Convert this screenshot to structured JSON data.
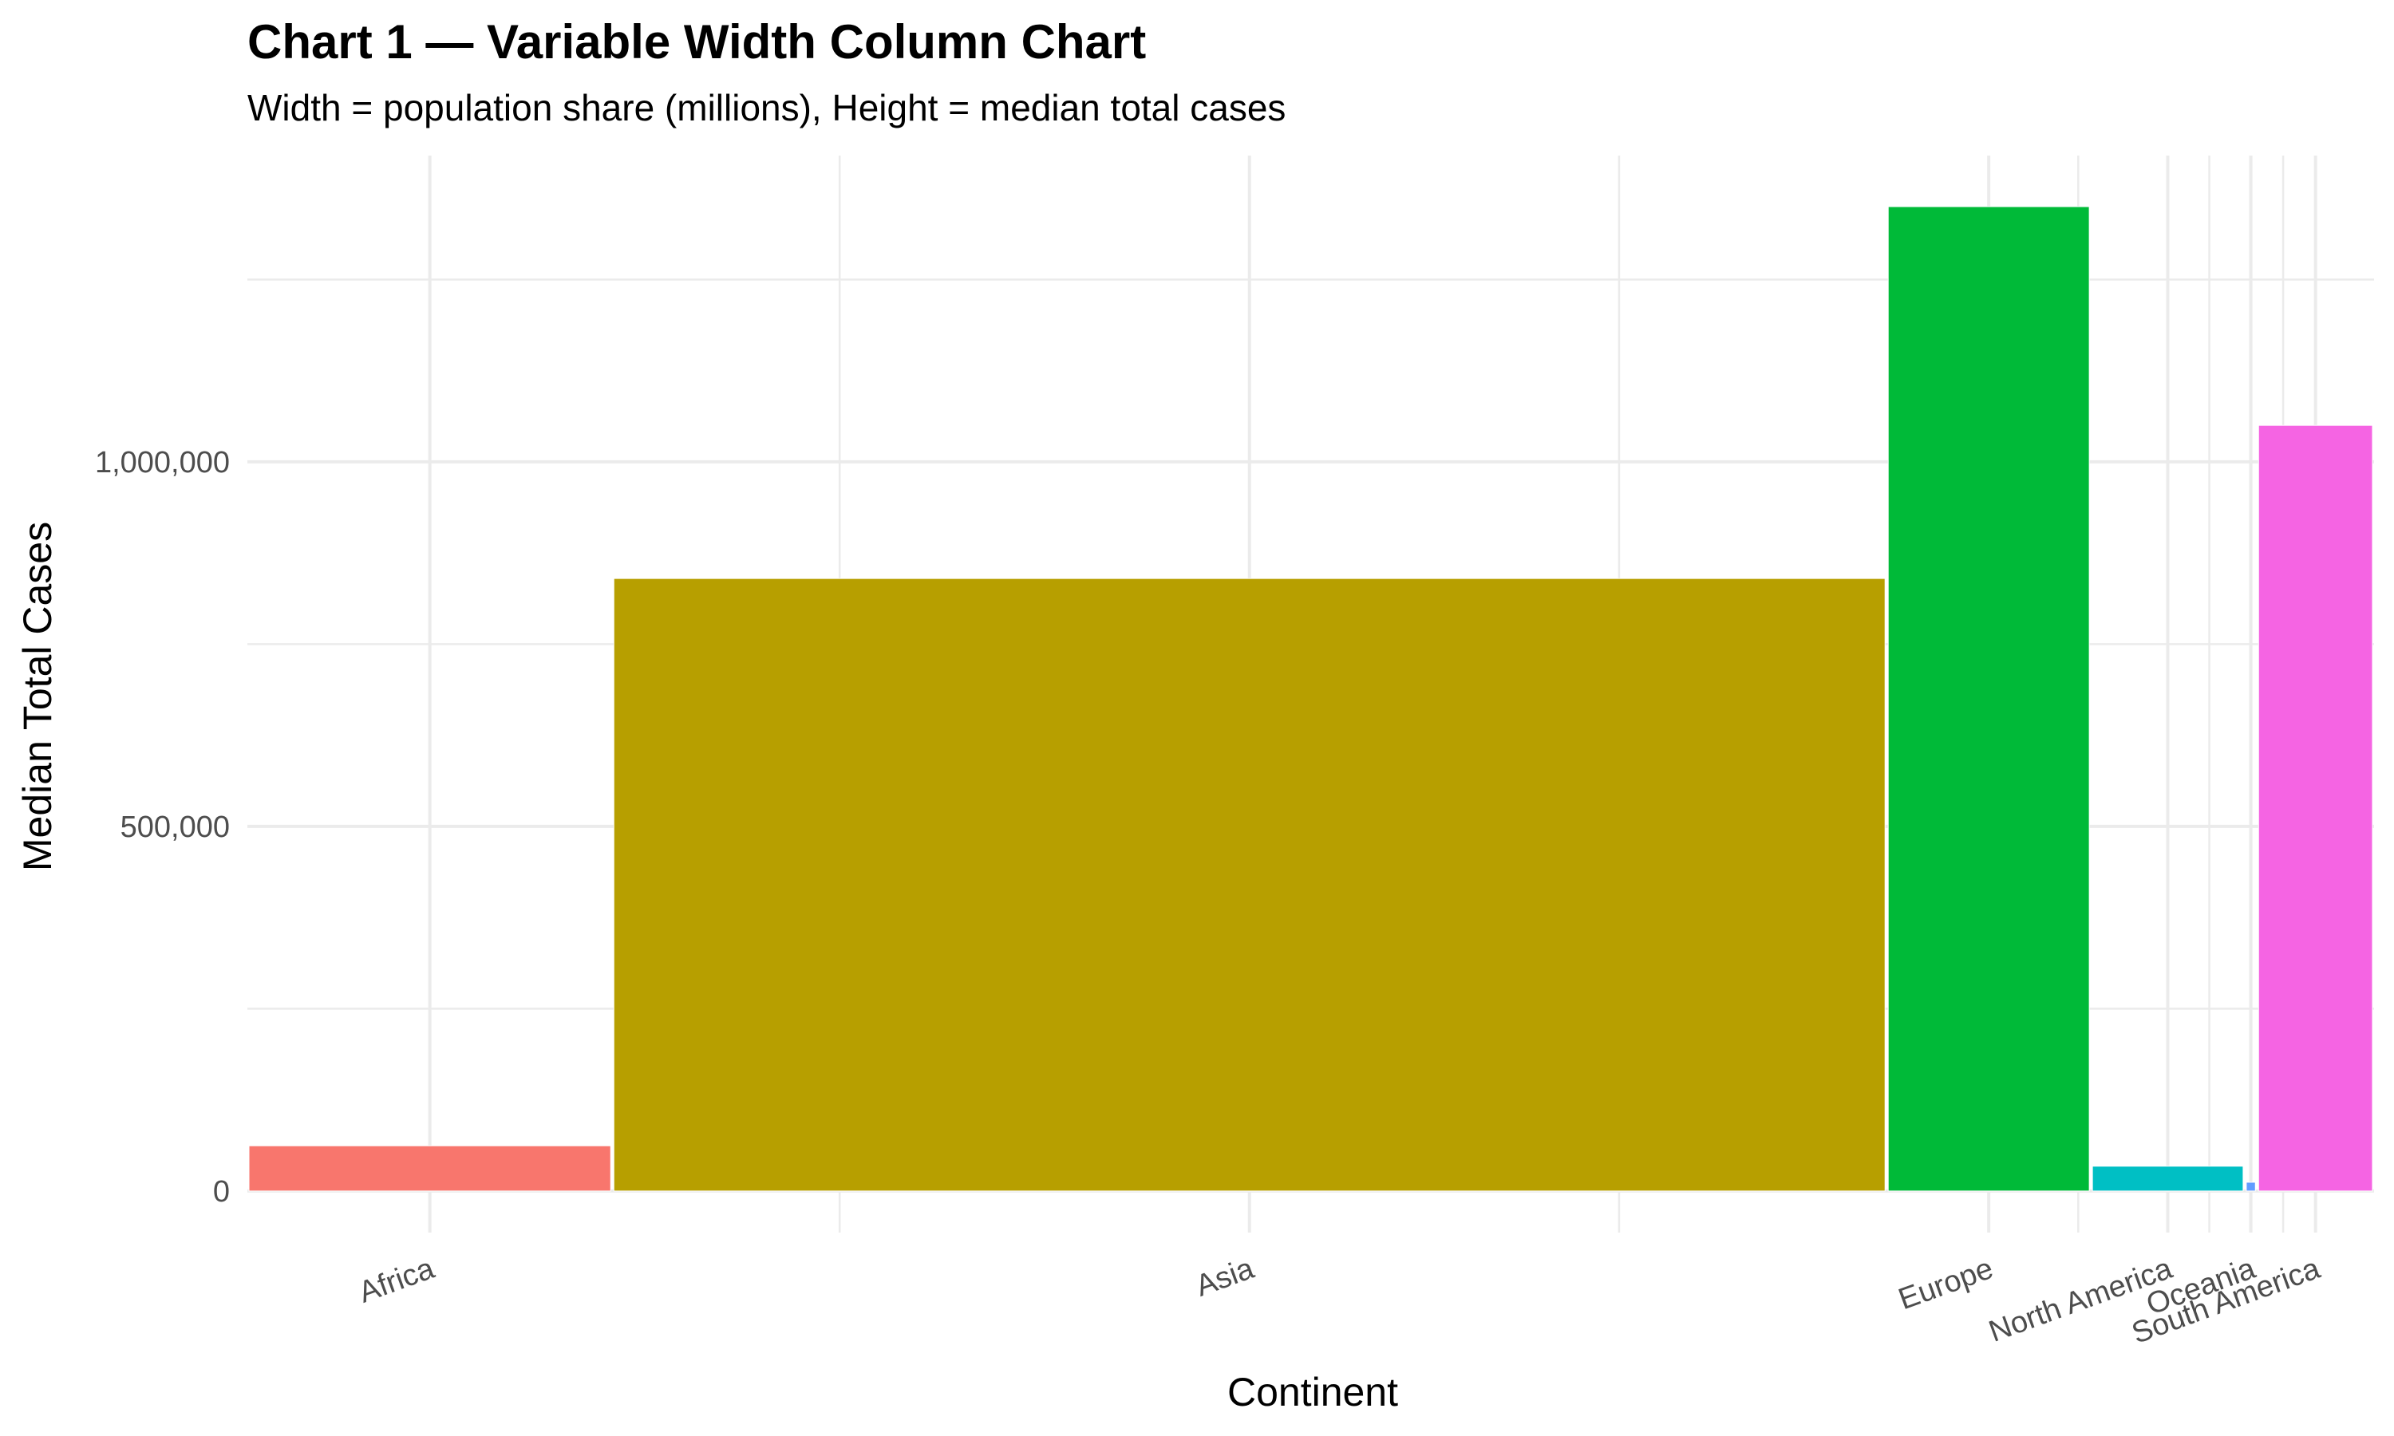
{
  "chart_data": {
    "type": "bar",
    "variant": "variable-width-column",
    "title": "Chart 1 — Variable Width Column Chart",
    "subtitle": "Width = population share (millions), Height = median total cases",
    "xlabel": "Continent",
    "ylabel": "Median Total Cases",
    "categories": [
      "Africa",
      "Asia",
      "Europe",
      "North America",
      "Oceania",
      "South America"
    ],
    "widths": [
      1340,
      4680,
      750,
      565,
      45,
      430
    ],
    "values": [
      62000,
      840000,
      1350000,
      34000,
      12000,
      1050000
    ],
    "colors": [
      "#F8766D",
      "#B79F00",
      "#00BA38",
      "#00BFC4",
      "#619CFF",
      "#F564E3"
    ],
    "ylim": [
      -57000,
      1420000
    ],
    "yticks": [
      {
        "value": 0,
        "label": "0"
      },
      {
        "value": 500000,
        "label": "500,000"
      },
      {
        "value": 1000000,
        "label": "1,000,000"
      }
    ],
    "grid": true,
    "legend": "none"
  }
}
